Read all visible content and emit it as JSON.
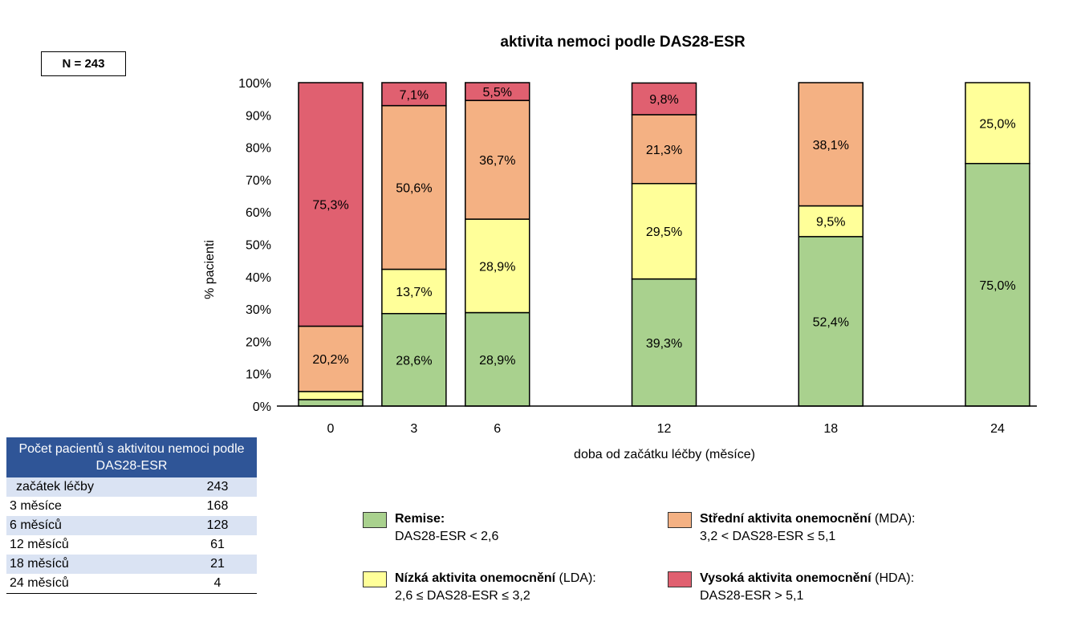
{
  "n_label": "N = 243",
  "chart_data": {
    "type": "bar",
    "stacked": true,
    "title": "aktivita nemoci podle DAS28-ESR",
    "xlabel": "doba od začátku léčby (měsíce)",
    "ylabel": "% pacienti",
    "ylim": [
      0,
      100
    ],
    "yticks": [
      "0%",
      "10%",
      "20%",
      "30%",
      "40%",
      "50%",
      "60%",
      "70%",
      "80%",
      "90%",
      "100%"
    ],
    "x": [
      0,
      3,
      6,
      12,
      18,
      24
    ],
    "categories": [
      "0",
      "3",
      "6",
      "12",
      "18",
      "24"
    ],
    "series": [
      {
        "name": "Remise",
        "color": "#a9d18e",
        "values": [
          2.0,
          28.6,
          28.9,
          39.3,
          52.4,
          75.0
        ],
        "labels": [
          "",
          "28,6%",
          "28,9%",
          "39,3%",
          "52,4%",
          "75,0%"
        ]
      },
      {
        "name": "Nízká aktivita onemocnění",
        "color": "#ffff99",
        "values": [
          2.5,
          13.7,
          28.9,
          29.5,
          9.5,
          25.0
        ],
        "labels": [
          "",
          "13,7%",
          "28,9%",
          "29,5%",
          "9,5%",
          "25,0%"
        ]
      },
      {
        "name": "Střední aktivita onemocnění",
        "color": "#f4b183",
        "values": [
          20.2,
          50.6,
          36.7,
          21.3,
          38.1,
          0
        ],
        "labels": [
          "20,2%",
          "50,6%",
          "36,7%",
          "21,3%",
          "38,1%",
          ""
        ]
      },
      {
        "name": "Vysoká aktivita onemocnění",
        "color": "#e06070",
        "values": [
          75.3,
          7.1,
          5.5,
          9.8,
          0,
          0
        ],
        "labels": [
          "75,3%",
          "7,1%",
          "5,5%",
          "9,8%",
          "",
          ""
        ]
      }
    ],
    "legend": [
      {
        "bold": "Remise:",
        "rest": "",
        "line2": "DAS28-ESR < 2,6",
        "color": "#a9d18e"
      },
      {
        "bold": "Střední aktivita onemocnění",
        "rest": " (MDA):",
        "line2": "3,2 < DAS28-ESR ≤ 5,1",
        "color": "#f4b183"
      },
      {
        "bold": "Nízká aktivita onemocnění",
        "rest": " (LDA):",
        "line2": "2,6 ≤ DAS28-ESR ≤ 3,2",
        "color": "#ffff99"
      },
      {
        "bold": "Vysoká aktivita onemocnění",
        "rest": " (HDA):",
        "line2": "DAS28-ESR > 5,1",
        "color": "#e06070"
      }
    ],
    "legend_position": "bottom"
  },
  "table": {
    "header": "Počet pacientů s aktivitou nemoci podle DAS28-ESR",
    "rows": [
      {
        "label": "začátek léčby",
        "value": "243"
      },
      {
        "label": "3 měsíce",
        "value": "168"
      },
      {
        "label": "6 měsíců",
        "value": "128"
      },
      {
        "label": "12 měsíců",
        "value": "61"
      },
      {
        "label": "18 měsíců",
        "value": "21"
      },
      {
        "label": "24 měsíců",
        "value": "4"
      }
    ]
  }
}
